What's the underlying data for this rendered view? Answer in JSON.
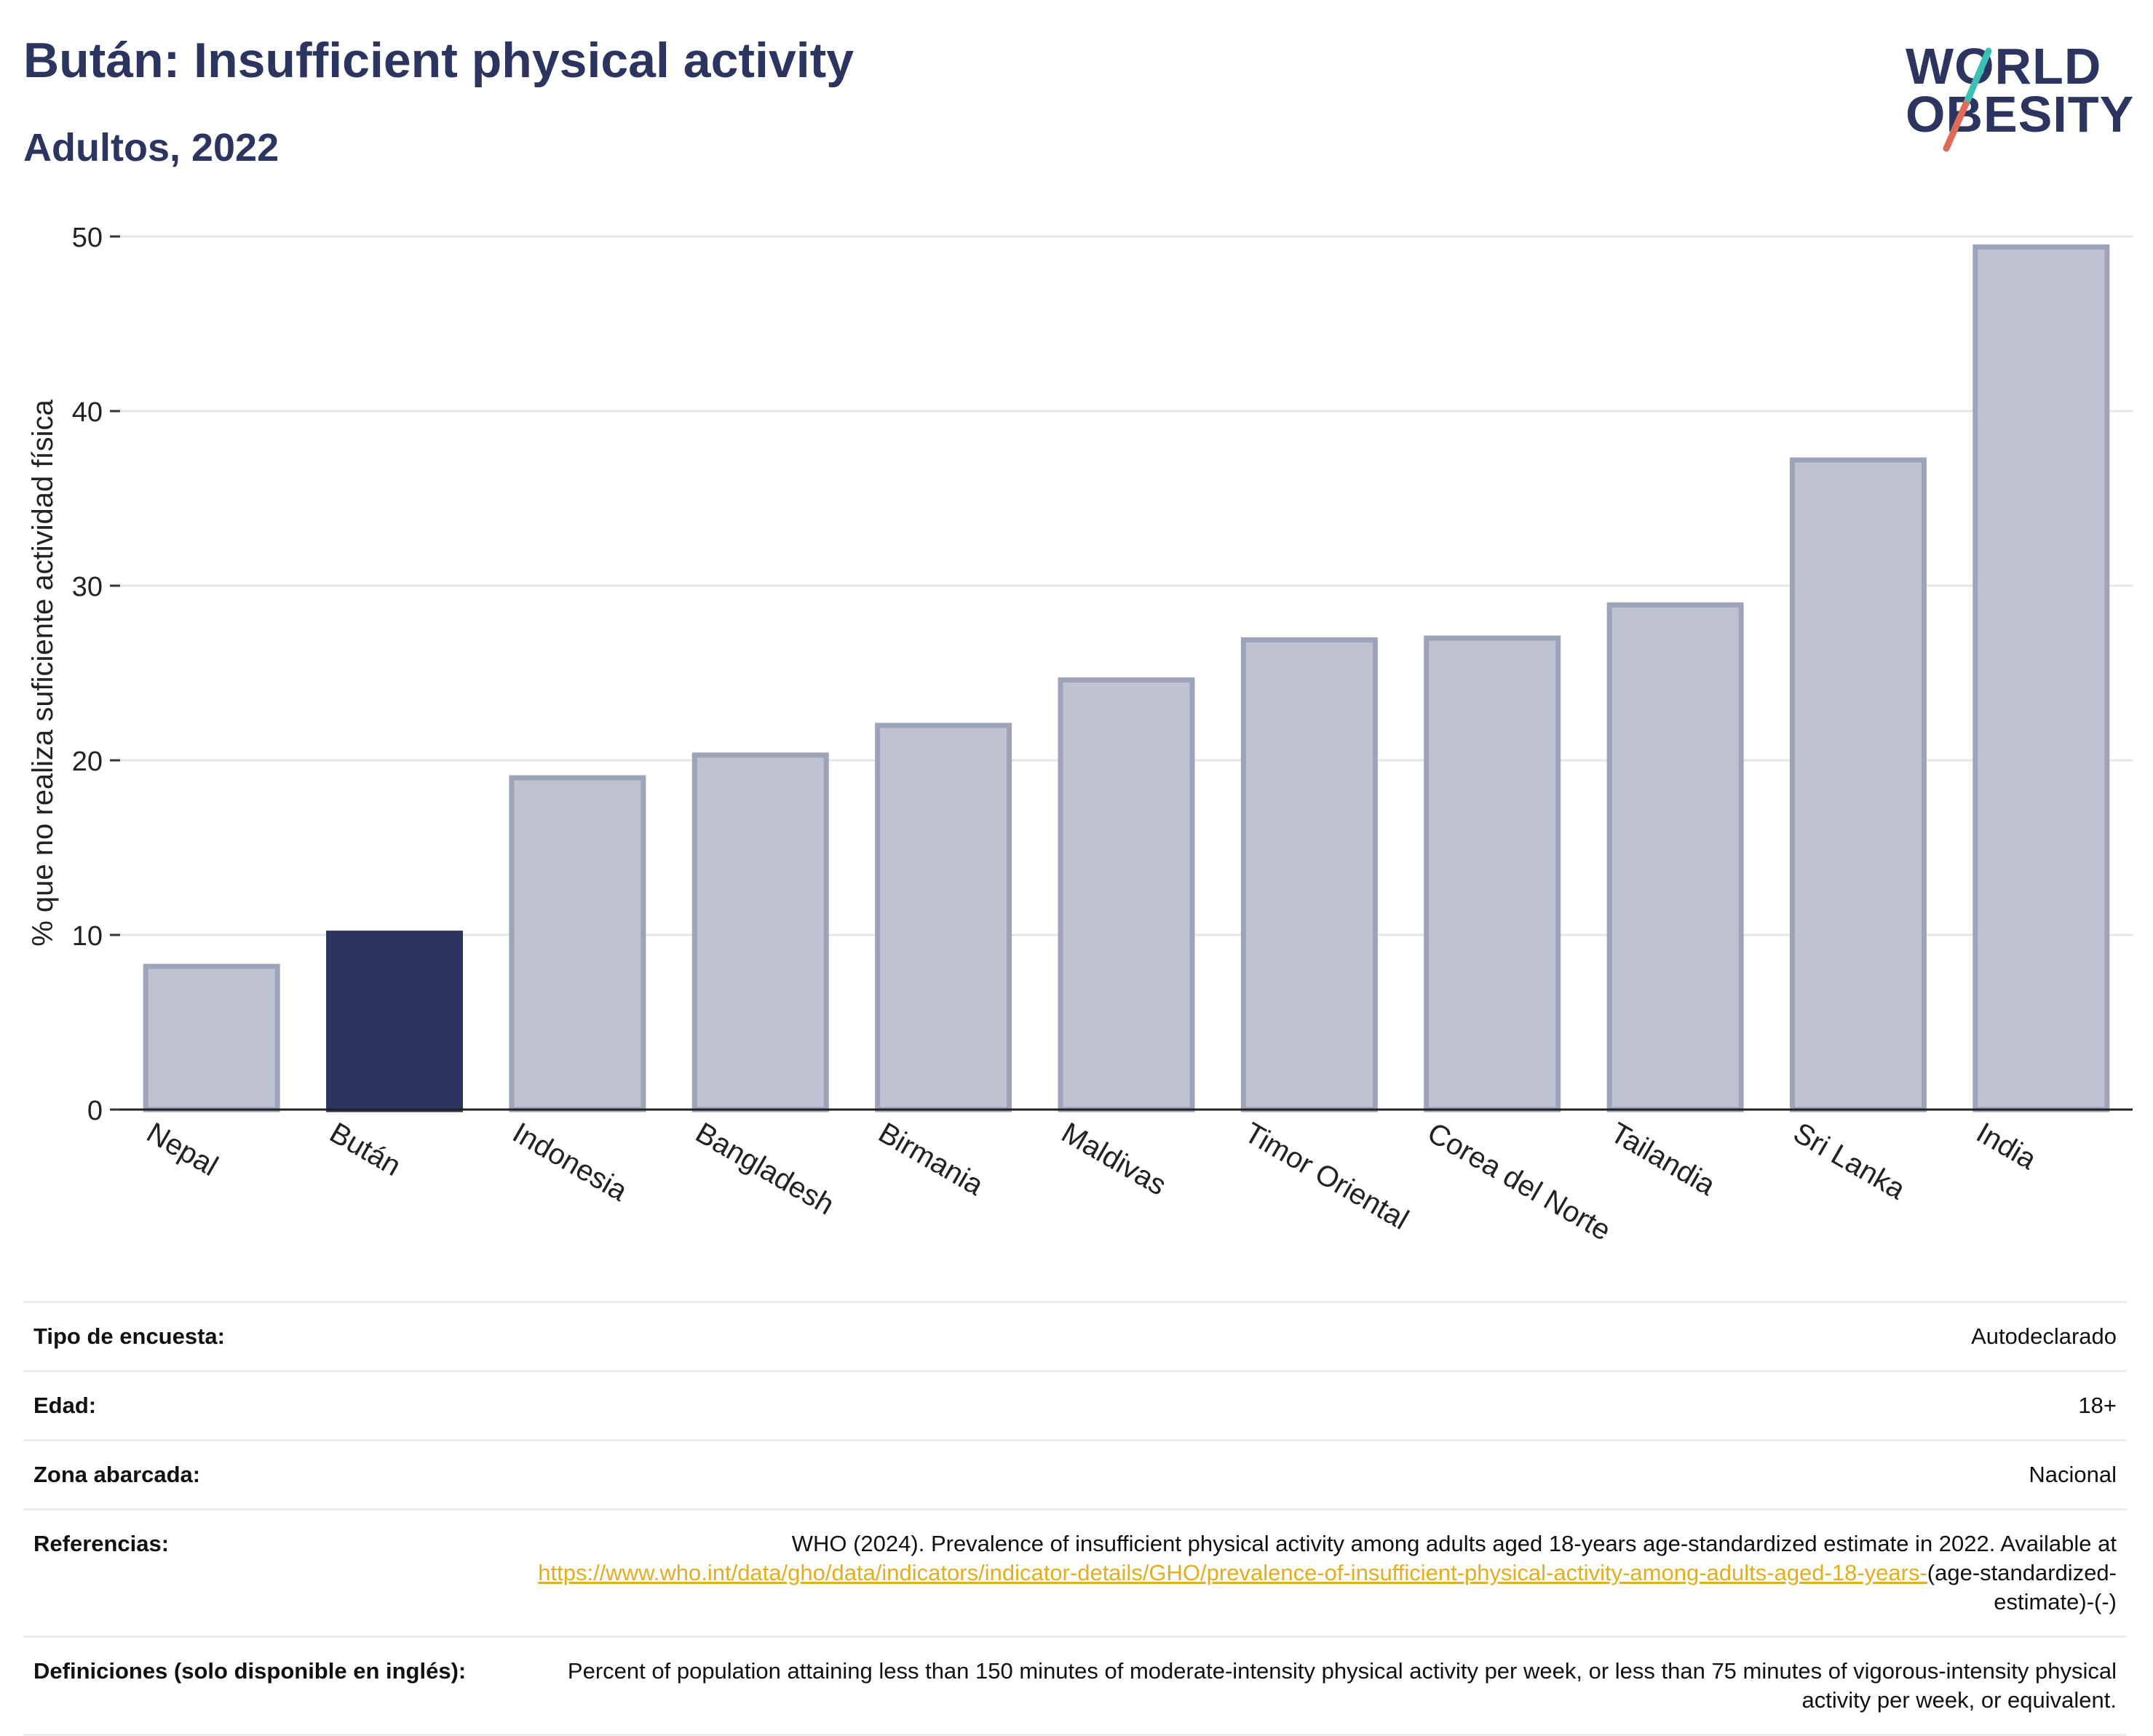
{
  "header": {
    "title": "Bután: Insufficient physical activity",
    "subtitle": "Adultos, 2022"
  },
  "logo": {
    "line1": "WORLD",
    "line2": "OBESITY",
    "colors": {
      "navy": "#2b3560",
      "teal": "#3cbfb5",
      "coral": "#e06a5a"
    }
  },
  "chart_data": {
    "type": "bar",
    "ylabel": "% que no realiza suficiente actividad física",
    "xlabel": "",
    "ylim": [
      0,
      50
    ],
    "yticks": [
      0,
      10,
      20,
      30,
      40,
      50
    ],
    "grid": true,
    "categories": [
      "Nepal",
      "Bután",
      "Indonesia",
      "Bangladesh",
      "Birmania",
      "Maldivas",
      "Timor Oriental",
      "Corea del Norte",
      "Tailandia",
      "Sri Lanka",
      "India"
    ],
    "values": [
      8.2,
      10.1,
      19.0,
      20.3,
      22.0,
      24.6,
      26.9,
      27.0,
      28.9,
      37.2,
      49.4
    ],
    "highlight": "Bután",
    "colors": {
      "bar": "#bfc3d1",
      "bar_edge": "#9da3b8",
      "highlight": "#2b3560"
    }
  },
  "meta": {
    "rows": [
      {
        "label": "Tipo de encuesta:",
        "value": "Autodeclarado"
      },
      {
        "label": "Edad:",
        "value": "18+"
      },
      {
        "label": "Zona abarcada:",
        "value": "Nacional"
      }
    ],
    "references": {
      "label": "Referencias:",
      "text": "WHO (2024). Prevalence of insufficient physical activity among adults aged 18-years age-standardized estimate in 2022. Available at",
      "link": "https://www.who.int/data/gho/data/indicators/indicator-details/GHO/prevalence-of-insufficient-physical-activity-among-adults-aged-18-years-",
      "suffix": "(age-standardized-estimate)-(-)"
    },
    "definitions": {
      "label": "Definiciones (solo disponible en inglés):",
      "value": "Percent of population attaining less than 150 minutes of moderate-intensity physical activity per week, or less than 75 minutes of vigorous-intensity physical activity per week, or equivalent."
    }
  }
}
